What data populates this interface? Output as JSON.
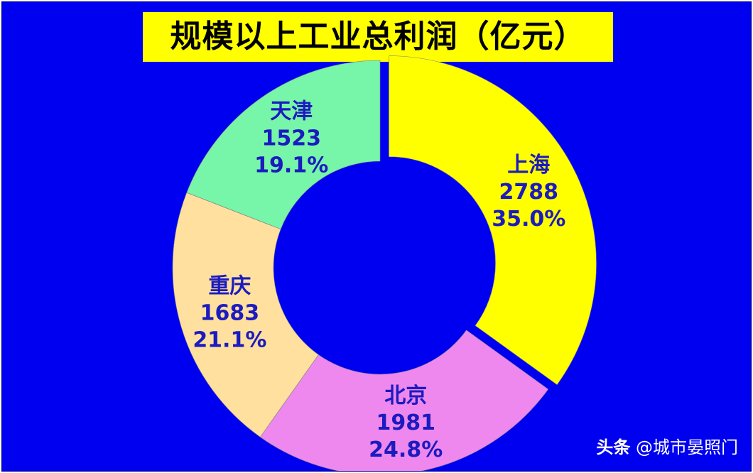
{
  "chart_data": {
    "type": "pie",
    "donut": true,
    "title": "规模以上工业总利润（亿元）",
    "categories": [
      "上海",
      "北京",
      "重庆",
      "天津"
    ],
    "values": [
      2788,
      1981,
      1683,
      1523
    ],
    "percents": [
      "35.0%",
      "24.8%",
      "21.1%",
      "19.1%"
    ],
    "value_labels": [
      "2788",
      "1981",
      "1683",
      "1523"
    ],
    "colors": [
      "#ffff00",
      "#ee88ee",
      "#ffe09e",
      "#77f5a9"
    ],
    "exploded": [
      "上海"
    ],
    "background": "#0000f0",
    "title_background": "#ffff00"
  },
  "watermark": {
    "prefix": "头条",
    "text": "@城市晏照门"
  }
}
